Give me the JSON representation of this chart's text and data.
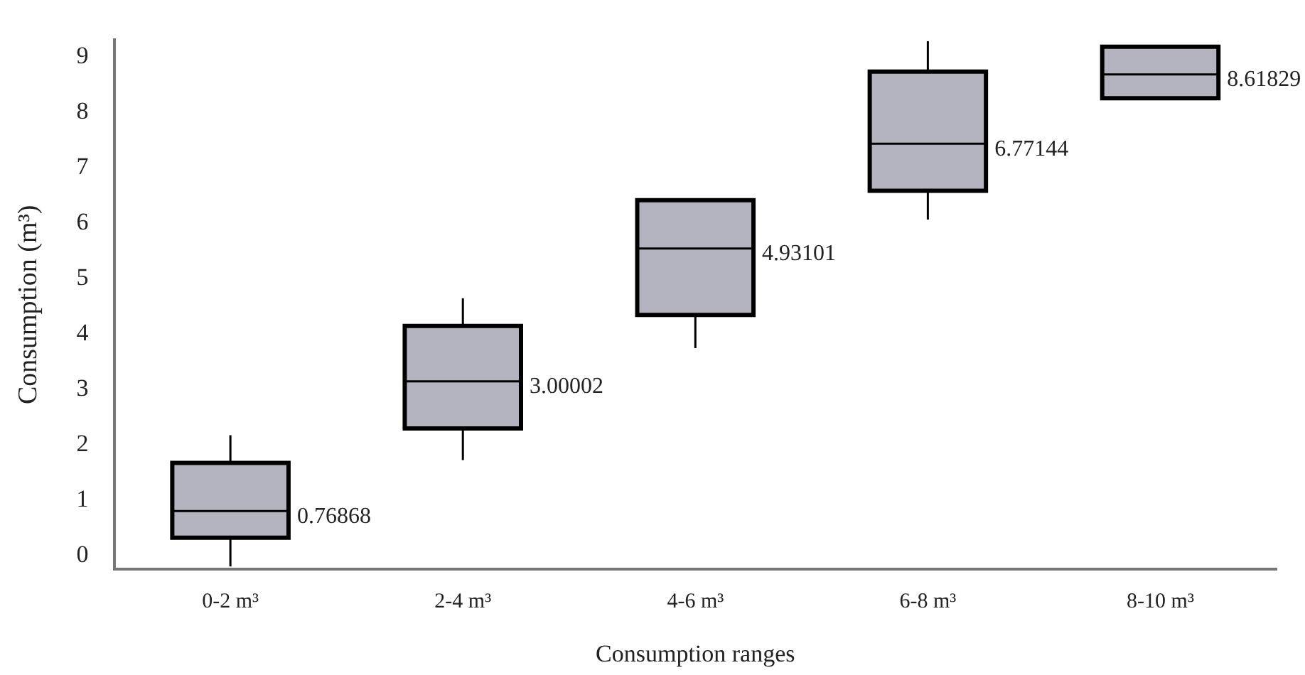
{
  "chart_data": {
    "type": "box",
    "xlabel": "Consumption ranges",
    "ylabel": "Consumption (m³)",
    "categories": [
      "0-2 m³",
      "2-4 m³",
      "4-6 m³",
      "6-8 m³",
      "8-10 m³"
    ],
    "boxes": [
      {
        "low": -0.2,
        "q1": 0.32,
        "median": 0.8,
        "q3": 1.67,
        "high": 2.17
      },
      {
        "low": 1.72,
        "q1": 2.29,
        "median": 3.14,
        "q3": 4.14,
        "high": 4.64
      },
      {
        "low": 3.74,
        "q1": 4.34,
        "median": 5.54,
        "q3": 6.41,
        "high": 6.41
      },
      {
        "low": 6.06,
        "q1": 6.58,
        "median": 7.43,
        "q3": 8.73,
        "high": 9.28
      },
      {
        "low": 8.25,
        "q1": 8.25,
        "median": 8.68,
        "q3": 9.18,
        "high": 9.18
      }
    ],
    "color": "#b4b4c0",
    "ylim": [
      -0.25,
      9.3
    ],
    "yticks": [
      0,
      1,
      2,
      3,
      4,
      5,
      6,
      7,
      8,
      9
    ],
    "grid": false,
    "legend": false,
    "annotations": [
      "0.76868",
      "3.00002",
      "4.93101",
      "6.77144",
      "8.61829"
    ]
  }
}
